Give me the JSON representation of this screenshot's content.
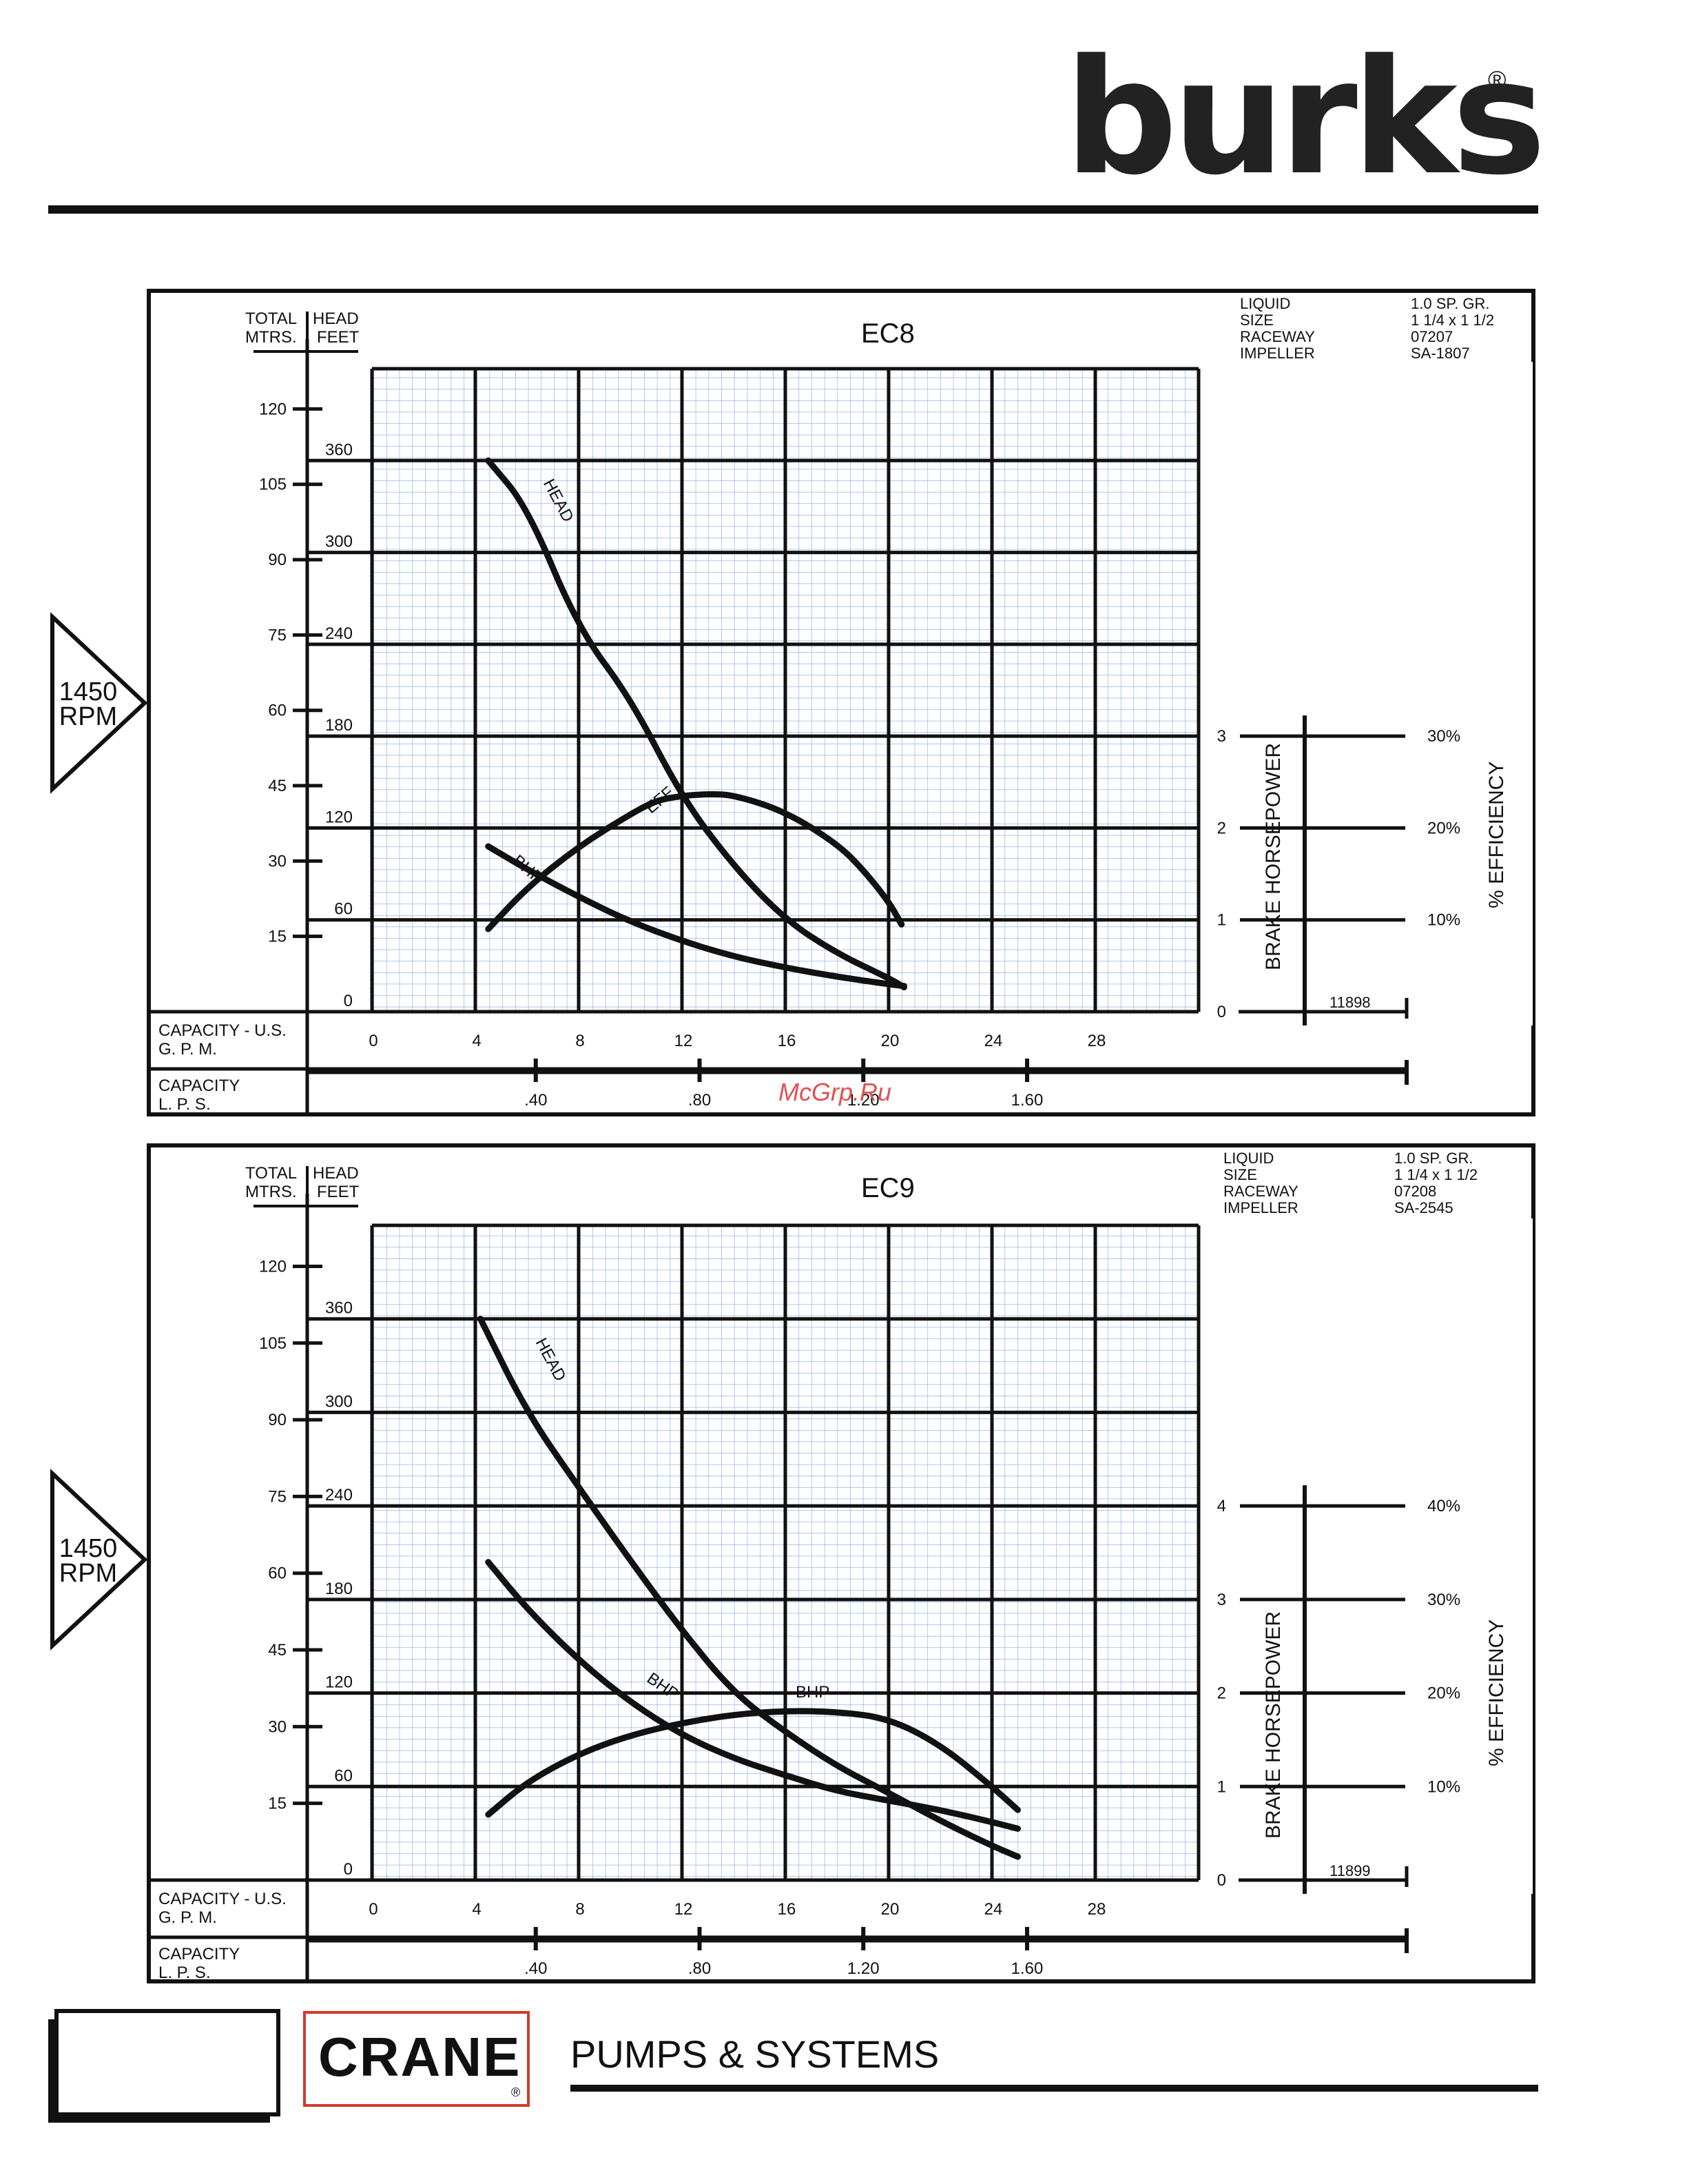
{
  "brand": {
    "logo": "burks",
    "registered": "®",
    "footer_logo": "CRANE",
    "footer_registered": "®",
    "footer_tagline": "PUMPS & SYSTEMS"
  },
  "watermark": "McGrp.Ru",
  "charts": [
    {
      "title": "EC8",
      "rpm": "1450\nRPM",
      "rpm_lines": [
        "1450",
        "RPM"
      ],
      "spec_labels": [
        "LIQUID",
        "SIZE",
        "RACEWAY",
        "IMPELLER"
      ],
      "spec_values": [
        "1.0 SP. GR.",
        "1 1/4 x 1 1/2",
        "07207",
        "SA-1807"
      ],
      "head_header": {
        "mtrs_line1": "TOTAL",
        "mtrs_line2": "MTRS.",
        "feet_line1": "HEAD",
        "feet_line2": "FEET"
      },
      "capacity_gpm_label": [
        "CAPACITY - U.S.",
        "G. P. M."
      ],
      "capacity_lps_label": [
        "CAPACITY",
        "L. P. S."
      ],
      "bhp_axis_label": "BRAKE HORSEPOWER",
      "eff_axis_label": "%  EFFICIENCY",
      "chart_number": "11898",
      "curve_labels": {
        "head": "HEAD",
        "eff": "EFF",
        "bhp": "BHP"
      },
      "ticks": {
        "gpm": [
          "0",
          "4",
          "8",
          "12",
          "16",
          "20",
          "24",
          "28"
        ],
        "lps": [
          ".40",
          ".80",
          "1.20",
          "1.60"
        ],
        "feet": [
          "0",
          "60",
          "120",
          "180",
          "240",
          "300",
          "360"
        ],
        "mtrs": [
          "15",
          "30",
          "45",
          "60",
          "75",
          "90",
          "105",
          "120"
        ],
        "bhp": [
          "0",
          "1",
          "2",
          "3"
        ],
        "eff": [
          "10%",
          "20%",
          "30%"
        ]
      }
    },
    {
      "title": "EC9",
      "rpm": "1450\nRPM",
      "rpm_lines": [
        "1450",
        "RPM"
      ],
      "spec_labels": [
        "LIQUID",
        "SIZE",
        "RACEWAY",
        "IMPELLER"
      ],
      "spec_values": [
        "1.0 SP. GR.",
        "1 1/4 x 1 1/2",
        "07208",
        "SA-2545"
      ],
      "head_header": {
        "mtrs_line1": "TOTAL",
        "mtrs_line2": "MTRS.",
        "feet_line1": "HEAD",
        "feet_line2": "FEET"
      },
      "capacity_gpm_label": [
        "CAPACITY - U.S.",
        "G. P. M."
      ],
      "capacity_lps_label": [
        "CAPACITY",
        "L. P. S."
      ],
      "bhp_axis_label": "BRAKE HORSEPOWER",
      "eff_axis_label": "%  EFFICIENCY",
      "chart_number": "11899",
      "curve_labels": {
        "head": "HEAD",
        "eff": "BHP",
        "bhp": "BHP"
      },
      "ticks": {
        "gpm": [
          "0",
          "4",
          "8",
          "12",
          "16",
          "20",
          "24",
          "28"
        ],
        "lps": [
          ".40",
          ".80",
          "1.20",
          "1.60"
        ],
        "feet": [
          "0",
          "60",
          "120",
          "180",
          "240",
          "300",
          "360"
        ],
        "mtrs": [
          "15",
          "30",
          "45",
          "60",
          "75",
          "90",
          "105",
          "120"
        ],
        "bhp": [
          "0",
          "1",
          "2",
          "3",
          "4"
        ],
        "eff": [
          "10%",
          "20%",
          "30%",
          "40%"
        ]
      }
    }
  ],
  "chart_data": [
    {
      "type": "line",
      "title": "EC8",
      "xlabel": "CAPACITY - U.S. G. P. M.",
      "ylabel": "TOTAL HEAD FEET",
      "xlim": [
        0,
        32
      ],
      "ylim": [
        0,
        420
      ],
      "grid": true,
      "series": [
        {
          "name": "HEAD",
          "axis": "feet",
          "x": [
            4.5,
            6,
            8,
            10,
            12,
            14,
            16,
            18,
            20,
            20.6
          ],
          "y": [
            360,
            330,
            250,
            205,
            140,
            95,
            60,
            38,
            22,
            16
          ]
        },
        {
          "name": "EFF",
          "axis": "efficiency_percent",
          "x": [
            4.5,
            6,
            8,
            10,
            11,
            12,
            13,
            14,
            16,
            18,
            19,
            20,
            20.5
          ],
          "y": [
            9,
            13.5,
            18,
            21.5,
            23,
            23.5,
            23.7,
            23.6,
            21.8,
            18.3,
            15.5,
            12,
            9.5
          ]
        },
        {
          "name": "BHP",
          "axis": "brake_horsepower",
          "x": [
            4.5,
            6,
            8,
            10,
            12,
            14,
            16,
            18,
            20,
            20.6
          ],
          "y": [
            1.8,
            1.55,
            1.25,
            0.98,
            0.77,
            0.6,
            0.48,
            0.38,
            0.3,
            0.28
          ]
        }
      ]
    },
    {
      "type": "line",
      "title": "EC9",
      "xlabel": "CAPACITY - U.S. G. P. M.",
      "ylabel": "TOTAL HEAD FEET",
      "xlim": [
        0,
        32
      ],
      "ylim": [
        0,
        420
      ],
      "grid": true,
      "series": [
        {
          "name": "HEAD",
          "axis": "feet",
          "x": [
            4.2,
            6,
            8,
            10,
            12,
            14,
            16,
            18,
            20,
            22,
            24,
            25
          ],
          "y": [
            360,
            300,
            252,
            205,
            160,
            120,
            95,
            73,
            56,
            38,
            22,
            15
          ]
        },
        {
          "name": "BHP",
          "axis": "efficiency_percent",
          "x": [
            4.5,
            6,
            8,
            10,
            12,
            14,
            16,
            18,
            20,
            22,
            24,
            25
          ],
          "y": [
            7,
            10.5,
            13.5,
            15.5,
            16.8,
            17.7,
            18.1,
            18,
            17.3,
            14.5,
            10,
            7.5
          ]
        },
        {
          "name": "BHP",
          "axis": "brake_horsepower",
          "x": [
            4.5,
            6,
            8,
            10,
            12,
            14,
            16,
            18,
            20,
            22,
            24,
            25
          ],
          "y": [
            3.4,
            2.9,
            2.35,
            1.9,
            1.55,
            1.3,
            1.12,
            0.95,
            0.85,
            0.75,
            0.62,
            0.55
          ]
        }
      ]
    }
  ]
}
